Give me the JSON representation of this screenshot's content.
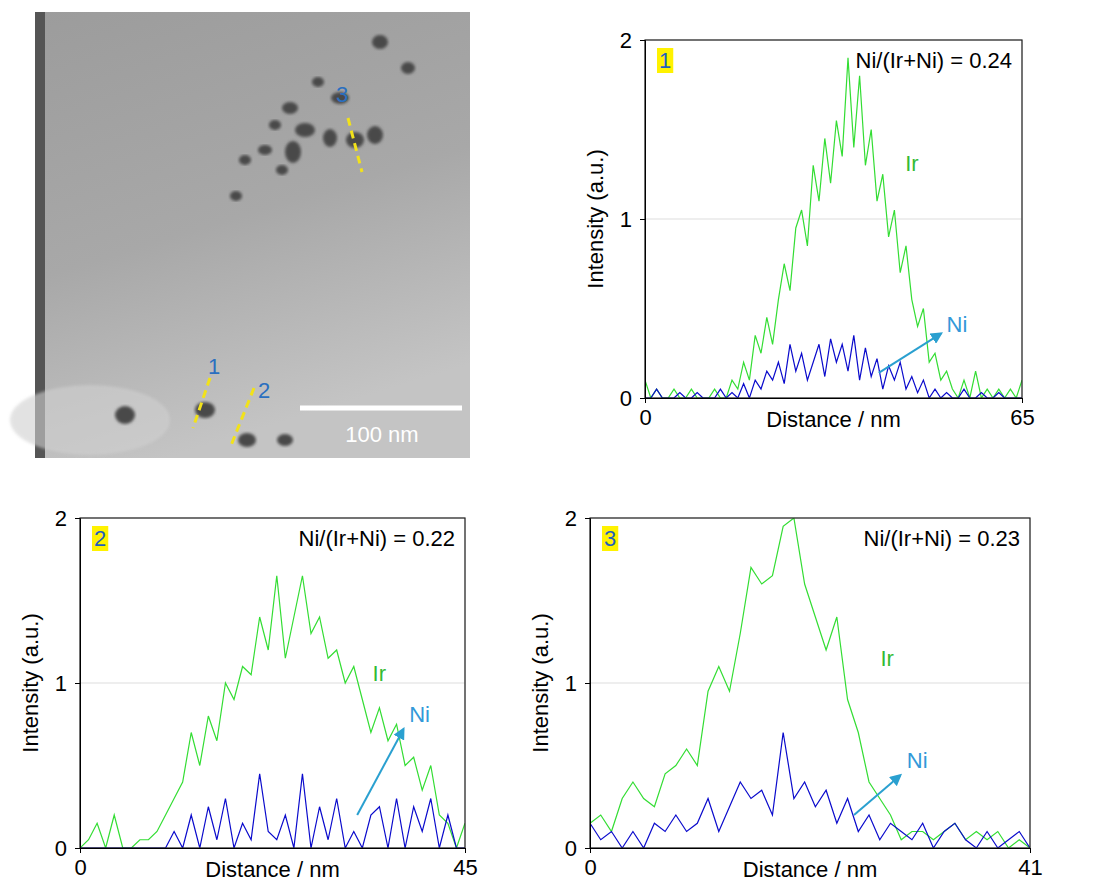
{
  "micrograph": {
    "line_labels": [
      "1",
      "2",
      "3"
    ],
    "scale_bar": "100 nm"
  },
  "chart_data": [
    {
      "type": "line",
      "panel_label": "1",
      "annotation": "Ni/(Ir+Ni) = 0.24",
      "x_label": "Distance / nm",
      "y_label": "Intensity (a.u.)",
      "xlim": [
        0,
        65
      ],
      "xticks": [
        0,
        65
      ],
      "ylim": [
        0,
        2
      ],
      "yticks": [
        0,
        1,
        2
      ],
      "grid": true,
      "x": [
        0,
        1,
        2,
        3,
        4,
        5,
        6,
        7,
        8,
        9,
        10,
        11,
        12,
        13,
        14,
        15,
        16,
        17,
        18,
        19,
        20,
        21,
        22,
        23,
        24,
        25,
        26,
        27,
        28,
        29,
        30,
        31,
        32,
        33,
        34,
        35,
        36,
        37,
        38,
        39,
        40,
        41,
        42,
        43,
        44,
        45,
        46,
        47,
        48,
        49,
        50,
        51,
        52,
        53,
        54,
        55,
        56,
        57,
        58,
        59,
        60,
        61,
        62,
        63,
        64,
        65
      ],
      "series": [
        {
          "name": "Ir",
          "color": "#33dd33",
          "values": [
            0.1,
            0,
            0.05,
            0,
            0,
            0.05,
            0,
            0,
            0.05,
            0,
            0,
            0,
            0.05,
            0,
            0,
            0.1,
            0.05,
            0.2,
            0.1,
            0.35,
            0.25,
            0.45,
            0.3,
            0.55,
            0.75,
            0.6,
            0.95,
            1.05,
            0.85,
            1.3,
            1.1,
            1.45,
            1.2,
            1.55,
            1.35,
            1.9,
            1.4,
            1.8,
            1.3,
            1.5,
            1.1,
            1.25,
            0.9,
            1.05,
            0.7,
            0.85,
            0.55,
            0.4,
            0.5,
            0.2,
            0.25,
            0.1,
            0.15,
            0.05,
            0,
            0.1,
            0,
            0.15,
            0,
            0.05,
            0,
            0.05,
            0,
            0.05,
            0,
            0.1
          ]
        },
        {
          "name": "Ni",
          "color": "#0a0acc",
          "values": [
            0,
            0,
            0.05,
            0,
            0,
            0,
            0.03,
            0,
            0,
            0.03,
            0,
            0,
            0,
            0.05,
            0,
            0.03,
            0,
            0.08,
            0,
            0.1,
            0.05,
            0.15,
            0.1,
            0.2,
            0.08,
            0.3,
            0.15,
            0.25,
            0.1,
            0.2,
            0.3,
            0.12,
            0.33,
            0.2,
            0.3,
            0.15,
            0.35,
            0.1,
            0.28,
            0.12,
            0.22,
            0.05,
            0.18,
            0.1,
            0.2,
            0.05,
            0.12,
            0.03,
            0.1,
            0,
            0.05,
            0,
            0.03,
            0,
            0,
            0.05,
            0,
            0,
            0.03,
            0,
            0,
            0.03,
            0,
            0,
            0,
            0
          ]
        }
      ]
    },
    {
      "type": "line",
      "panel_label": "2",
      "annotation": "Ni/(Ir+Ni) = 0.22",
      "x_label": "Distance / nm",
      "y_label": "Intensity (a.u.)",
      "xlim": [
        0,
        45
      ],
      "xticks": [
        0,
        45
      ],
      "ylim": [
        0,
        2
      ],
      "yticks": [
        0,
        1,
        2
      ],
      "grid": true,
      "x": [
        0,
        1,
        2,
        3,
        4,
        5,
        6,
        7,
        8,
        9,
        10,
        11,
        12,
        13,
        14,
        15,
        16,
        17,
        18,
        19,
        20,
        21,
        22,
        23,
        24,
        25,
        26,
        27,
        28,
        29,
        30,
        31,
        32,
        33,
        34,
        35,
        36,
        37,
        38,
        39,
        40,
        41,
        42,
        43,
        44,
        45
      ],
      "series": [
        {
          "name": "Ir",
          "color": "#33dd33",
          "values": [
            0,
            0.05,
            0.15,
            0,
            0.2,
            0,
            0,
            0.05,
            0.05,
            0.1,
            0.2,
            0.3,
            0.4,
            0.7,
            0.5,
            0.8,
            0.65,
            1.0,
            0.9,
            1.1,
            1.05,
            1.4,
            1.2,
            1.65,
            1.15,
            1.4,
            1.65,
            1.3,
            1.4,
            1.15,
            1.2,
            1.0,
            1.1,
            0.9,
            0.7,
            0.85,
            0.65,
            0.75,
            0.5,
            0.55,
            0.35,
            0.5,
            0.2,
            0.15,
            0,
            0.15
          ]
        },
        {
          "name": "Ni",
          "color": "#0a0acc",
          "values": [
            0,
            0,
            0,
            0,
            0,
            0,
            0,
            0,
            0,
            0,
            0,
            0.1,
            0,
            0.2,
            0,
            0.25,
            0.05,
            0.3,
            0,
            0.15,
            0.05,
            0.45,
            0.1,
            0.05,
            0.2,
            0,
            0.45,
            0,
            0.25,
            0.05,
            0.3,
            0,
            0.1,
            0,
            0.2,
            0.25,
            0,
            0.3,
            0,
            0.25,
            0.1,
            0.3,
            0,
            0.2,
            0,
            0
          ]
        }
      ]
    },
    {
      "type": "line",
      "panel_label": "3",
      "annotation": "Ni/(Ir+Ni) = 0.23",
      "x_label": "Distance / nm",
      "y_label": "Intensity (a.u.)",
      "xlim": [
        0,
        41
      ],
      "xticks": [
        0,
        41
      ],
      "ylim": [
        0,
        2
      ],
      "yticks": [
        0,
        1,
        2
      ],
      "grid": true,
      "x": [
        0,
        1,
        2,
        3,
        4,
        5,
        6,
        7,
        8,
        9,
        10,
        11,
        12,
        13,
        14,
        15,
        16,
        17,
        18,
        19,
        20,
        21,
        22,
        23,
        24,
        25,
        26,
        27,
        28,
        29,
        30,
        31,
        32,
        33,
        34,
        35,
        36,
        37,
        38,
        39,
        40,
        41
      ],
      "series": [
        {
          "name": "Ir",
          "color": "#33dd33",
          "values": [
            0.15,
            0.2,
            0.1,
            0.3,
            0.4,
            0.3,
            0.25,
            0.45,
            0.5,
            0.6,
            0.5,
            0.95,
            1.1,
            0.95,
            1.3,
            1.7,
            1.6,
            1.65,
            1.95,
            2.0,
            1.6,
            1.4,
            1.2,
            1.4,
            0.9,
            0.7,
            0.4,
            0.3,
            0.2,
            0.05,
            0.1,
            0.1,
            0.05,
            0.1,
            0.15,
            0.05,
            0.1,
            0.05,
            0.1,
            0,
            0.05,
            0
          ]
        },
        {
          "name": "Ni",
          "color": "#0a0acc",
          "values": [
            0.15,
            0.05,
            0.1,
            0,
            0.1,
            0,
            0.15,
            0.1,
            0.2,
            0.1,
            0.15,
            0.3,
            0.1,
            0.25,
            0.4,
            0.3,
            0.35,
            0.2,
            0.7,
            0.3,
            0.4,
            0.25,
            0.35,
            0.15,
            0.3,
            0.1,
            0.2,
            0.05,
            0.15,
            0.1,
            0.05,
            0.15,
            0,
            0.1,
            0.15,
            0.05,
            0,
            0.1,
            0,
            0.05,
            0.1,
            0
          ]
        }
      ]
    }
  ]
}
